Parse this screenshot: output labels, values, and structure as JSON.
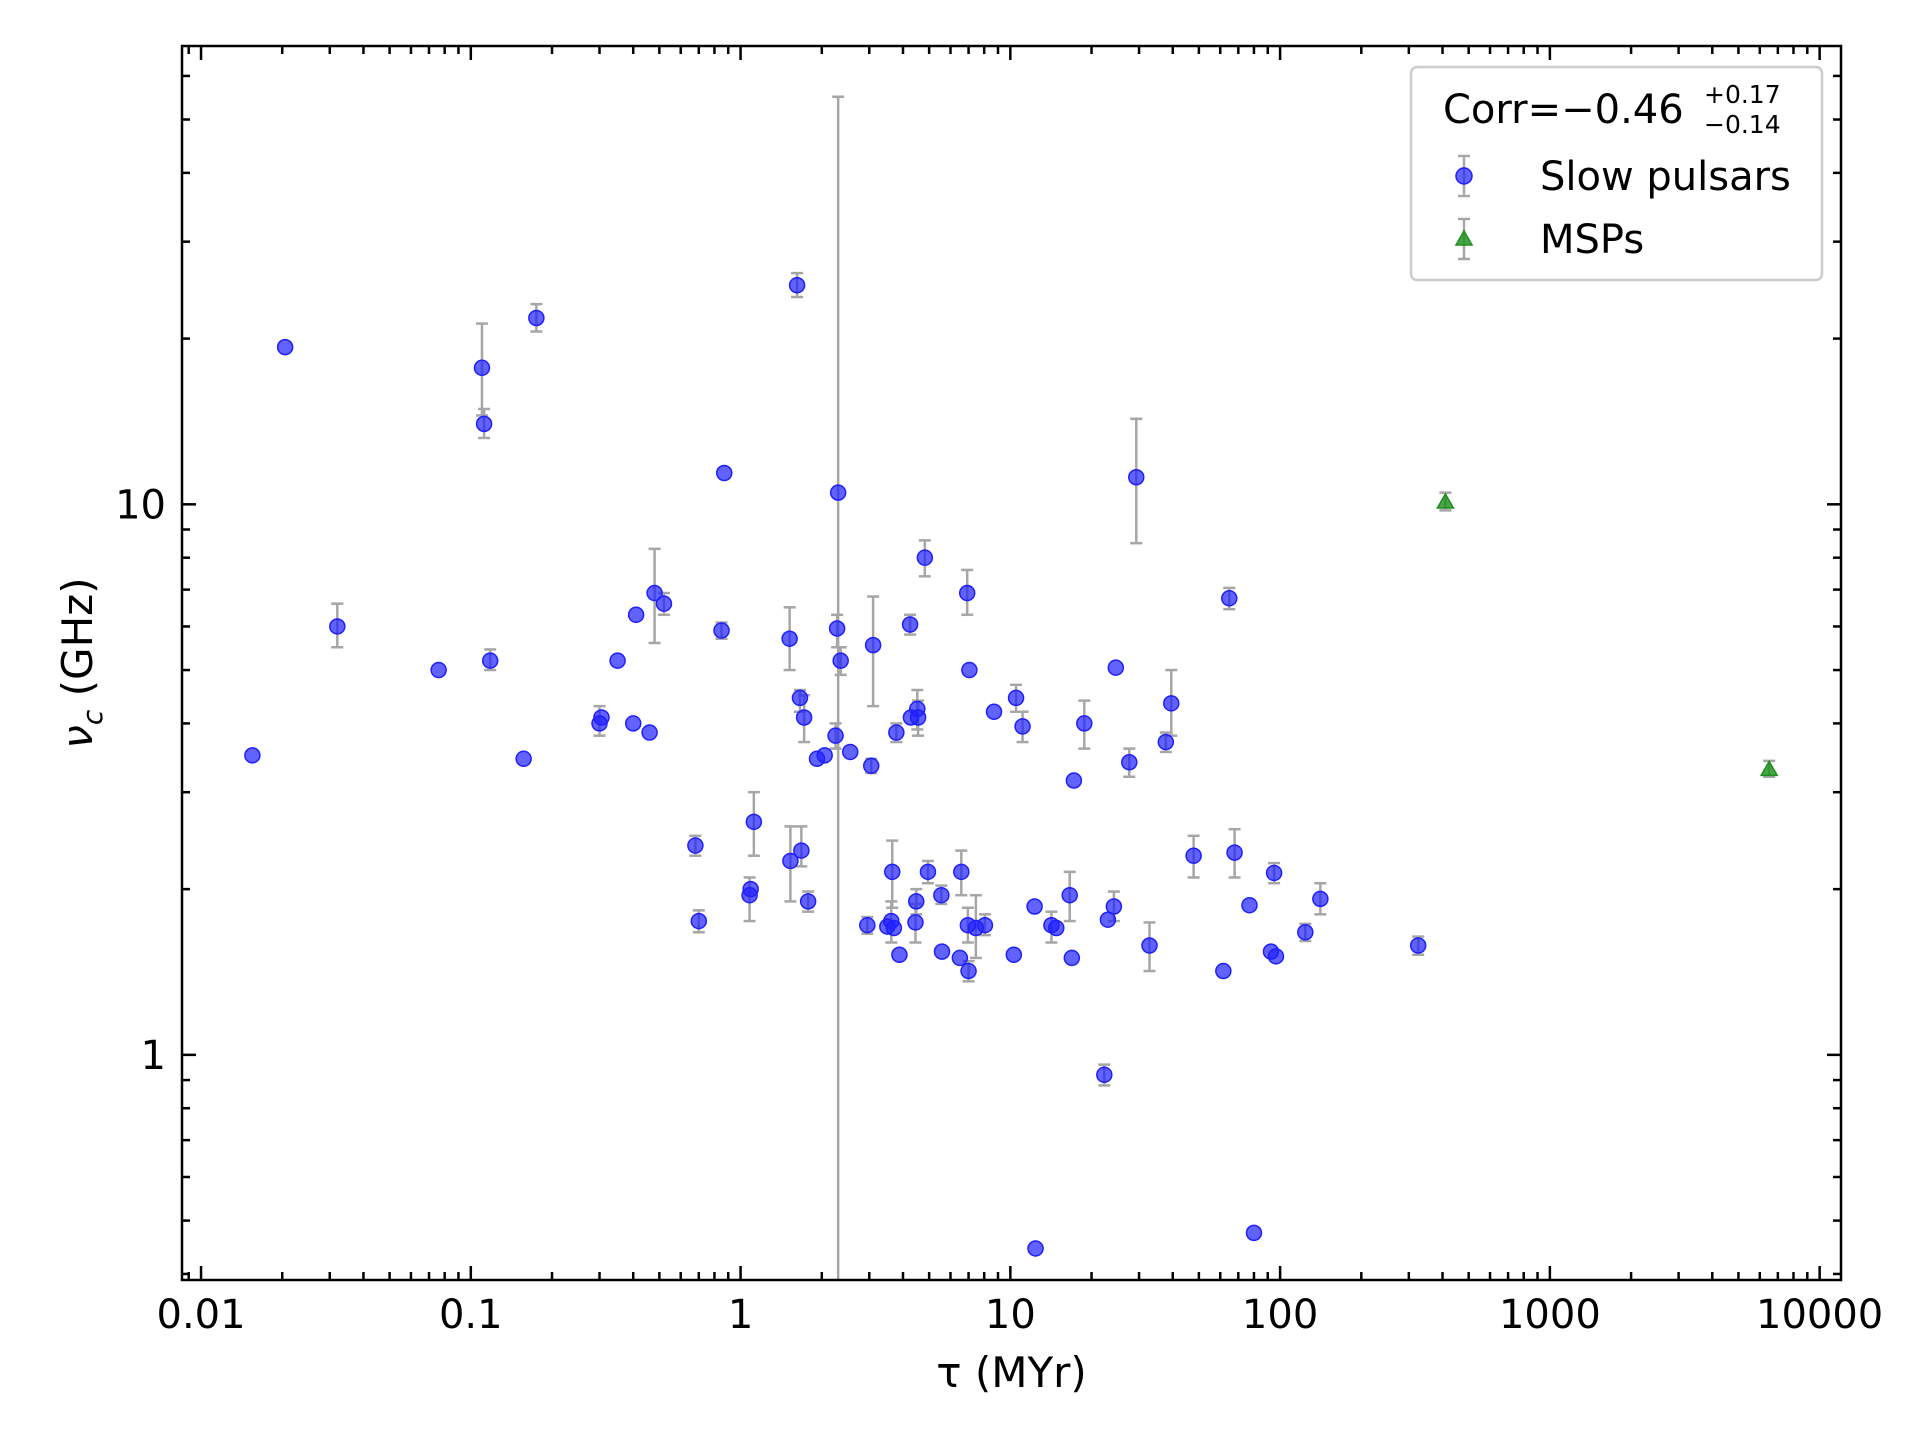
{
  "chart_data": {
    "type": "scatter",
    "title": "",
    "xlabel": "τ (MYr)",
    "ylabel": "ν_c (GHz)",
    "xscale": "log",
    "yscale": "log",
    "xlim": [
      0.0085,
      12000
    ],
    "ylim": [
      0.39,
      68
    ],
    "x_ticks": [
      0.01,
      0.1,
      1,
      10,
      100,
      1000,
      10000
    ],
    "x_tick_labels": [
      "0.01",
      "0.1",
      "1",
      "10",
      "100",
      "1000",
      "10000"
    ],
    "y_ticks": [
      1,
      10
    ],
    "y_tick_labels": [
      "1",
      "10"
    ],
    "grid": false,
    "legend_position": "top-right",
    "annotation": {
      "prefix": "Corr=",
      "value": "−0.46",
      "upper": "+0.17",
      "lower": "−0.14"
    },
    "series": [
      {
        "name": "Slow pulsars",
        "marker": "circle",
        "color": "#1f1fff",
        "points": [
          {
            "x": 0.0155,
            "y": 3.5
          },
          {
            "x": 0.0205,
            "y": 19.3
          },
          {
            "x": 0.032,
            "y": 6.0,
            "ylo": 5.5,
            "yhi": 6.6
          },
          {
            "x": 0.076,
            "y": 5.0
          },
          {
            "x": 0.11,
            "y": 17.7,
            "ylo": 14.5,
            "yhi": 21.3
          },
          {
            "x": 0.112,
            "y": 14.0,
            "ylo": 13.2,
            "yhi": 14.9
          },
          {
            "x": 0.118,
            "y": 5.2,
            "ylo": 5.0,
            "yhi": 5.45
          },
          {
            "x": 0.157,
            "y": 3.45
          },
          {
            "x": 0.175,
            "y": 21.8,
            "ylo": 20.6,
            "yhi": 23.1
          },
          {
            "x": 0.3,
            "y": 4.0,
            "ylo": 3.8,
            "yhi": 4.3
          },
          {
            "x": 0.305,
            "y": 4.1
          },
          {
            "x": 0.35,
            "y": 5.2
          },
          {
            "x": 0.4,
            "y": 4.0
          },
          {
            "x": 0.41,
            "y": 6.3
          },
          {
            "x": 0.46,
            "y": 3.85
          },
          {
            "x": 0.48,
            "y": 6.9,
            "ylo": 5.6,
            "yhi": 8.3
          },
          {
            "x": 0.52,
            "y": 6.6,
            "ylo": 6.3,
            "yhi": 6.9
          },
          {
            "x": 0.68,
            "y": 2.4,
            "ylo": 2.3,
            "yhi": 2.5
          },
          {
            "x": 0.7,
            "y": 1.75,
            "ylo": 1.67,
            "yhi": 1.83
          },
          {
            "x": 0.85,
            "y": 5.9,
            "ylo": 5.7,
            "yhi": 6.1
          },
          {
            "x": 0.87,
            "y": 11.4
          },
          {
            "x": 1.08,
            "y": 1.95,
            "ylo": 1.75,
            "yhi": 2.1
          },
          {
            "x": 1.09,
            "y": 2.0
          },
          {
            "x": 1.12,
            "y": 2.65,
            "ylo": 2.3,
            "yhi": 3.0
          },
          {
            "x": 1.52,
            "y": 5.7,
            "ylo": 5.0,
            "yhi": 6.5
          },
          {
            "x": 1.53,
            "y": 2.25,
            "ylo": 1.9,
            "yhi": 2.6
          },
          {
            "x": 1.62,
            "y": 25.0,
            "ylo": 23.8,
            "yhi": 26.3
          },
          {
            "x": 1.66,
            "y": 4.45,
            "ylo": 4.2,
            "yhi": 4.6
          },
          {
            "x": 1.68,
            "y": 2.35,
            "ylo": 2.2,
            "yhi": 2.6
          },
          {
            "x": 1.72,
            "y": 4.1,
            "ylo": 3.7,
            "yhi": 4.5
          },
          {
            "x": 1.78,
            "y": 1.9,
            "ylo": 1.82,
            "yhi": 1.98
          },
          {
            "x": 1.92,
            "y": 3.45
          },
          {
            "x": 2.05,
            "y": 3.5
          },
          {
            "x": 2.25,
            "y": 3.8,
            "ylo": 3.6,
            "yhi": 4.0
          },
          {
            "x": 2.28,
            "y": 5.95,
            "ylo": 5.5,
            "yhi": 6.3
          },
          {
            "x": 2.3,
            "y": 10.5,
            "ylo": 0.39,
            "yhi": 55.0
          },
          {
            "x": 2.35,
            "y": 5.2,
            "ylo": 4.9,
            "yhi": 5.5
          },
          {
            "x": 2.55,
            "y": 3.55
          },
          {
            "x": 2.95,
            "y": 1.72,
            "ylo": 1.66,
            "yhi": 1.78
          },
          {
            "x": 3.05,
            "y": 3.35,
            "ylo": 3.25,
            "yhi": 3.45
          },
          {
            "x": 3.1,
            "y": 5.55,
            "ylo": 4.3,
            "yhi": 6.8
          },
          {
            "x": 3.5,
            "y": 1.71
          },
          {
            "x": 3.62,
            "y": 1.75,
            "ylo": 1.6,
            "yhi": 1.9
          },
          {
            "x": 3.65,
            "y": 2.15,
            "ylo": 1.85,
            "yhi": 2.45
          },
          {
            "x": 3.7,
            "y": 1.7
          },
          {
            "x": 3.78,
            "y": 3.85,
            "ylo": 3.7,
            "yhi": 4.0
          },
          {
            "x": 3.88,
            "y": 1.52
          },
          {
            "x": 4.25,
            "y": 6.05,
            "ylo": 5.8,
            "yhi": 6.3
          },
          {
            "x": 4.28,
            "y": 4.1
          },
          {
            "x": 4.45,
            "y": 1.74,
            "ylo": 1.6,
            "yhi": 1.88
          },
          {
            "x": 4.48,
            "y": 1.9,
            "ylo": 1.8,
            "yhi": 2.0
          },
          {
            "x": 4.52,
            "y": 4.25,
            "ylo": 3.9,
            "yhi": 4.6
          },
          {
            "x": 4.55,
            "y": 4.1,
            "ylo": 3.8,
            "yhi": 4.4
          },
          {
            "x": 4.82,
            "y": 8.0,
            "ylo": 7.4,
            "yhi": 8.6
          },
          {
            "x": 4.95,
            "y": 2.15,
            "ylo": 2.05,
            "yhi": 2.25
          },
          {
            "x": 5.55,
            "y": 1.95,
            "ylo": 1.88,
            "yhi": 2.03
          },
          {
            "x": 5.58,
            "y": 1.54
          },
          {
            "x": 6.5,
            "y": 1.5
          },
          {
            "x": 6.58,
            "y": 2.15,
            "ylo": 1.95,
            "yhi": 2.35
          },
          {
            "x": 6.92,
            "y": 6.9,
            "ylo": 6.3,
            "yhi": 7.6
          },
          {
            "x": 6.96,
            "y": 1.72,
            "ylo": 1.6,
            "yhi": 1.85
          },
          {
            "x": 7.0,
            "y": 1.42,
            "ylo": 1.36,
            "yhi": 1.48
          },
          {
            "x": 7.05,
            "y": 5.0
          },
          {
            "x": 7.45,
            "y": 1.7,
            "ylo": 1.5,
            "yhi": 1.95
          },
          {
            "x": 8.05,
            "y": 1.72,
            "ylo": 1.65,
            "yhi": 1.8
          },
          {
            "x": 8.7,
            "y": 4.2
          },
          {
            "x": 10.3,
            "y": 1.52
          },
          {
            "x": 10.5,
            "y": 4.45,
            "ylo": 4.2,
            "yhi": 4.7
          },
          {
            "x": 11.1,
            "y": 3.95,
            "ylo": 3.7,
            "yhi": 4.2
          },
          {
            "x": 12.3,
            "y": 1.86
          },
          {
            "x": 12.4,
            "y": 0.445
          },
          {
            "x": 14.2,
            "y": 1.72,
            "ylo": 1.6,
            "yhi": 1.82
          },
          {
            "x": 14.8,
            "y": 1.7
          },
          {
            "x": 16.6,
            "y": 1.95,
            "ylo": 1.75,
            "yhi": 2.15
          },
          {
            "x": 16.9,
            "y": 1.5
          },
          {
            "x": 17.2,
            "y": 3.15
          },
          {
            "x": 18.8,
            "y": 4.0,
            "ylo": 3.6,
            "yhi": 4.4
          },
          {
            "x": 22.3,
            "y": 0.92,
            "ylo": 0.88,
            "yhi": 0.96
          },
          {
            "x": 23.0,
            "y": 1.76
          },
          {
            "x": 24.2,
            "y": 1.86,
            "ylo": 1.75,
            "yhi": 1.98
          },
          {
            "x": 24.6,
            "y": 5.05
          },
          {
            "x": 27.6,
            "y": 3.4,
            "ylo": 3.2,
            "yhi": 3.6
          },
          {
            "x": 29.3,
            "y": 11.2,
            "ylo": 8.5,
            "yhi": 14.3
          },
          {
            "x": 32.8,
            "y": 1.58,
            "ylo": 1.42,
            "yhi": 1.74
          },
          {
            "x": 37.7,
            "y": 3.7,
            "ylo": 3.55,
            "yhi": 3.85
          },
          {
            "x": 39.5,
            "y": 4.35,
            "ylo": 3.8,
            "yhi": 5.0
          },
          {
            "x": 47.8,
            "y": 2.3,
            "ylo": 2.1,
            "yhi": 2.5
          },
          {
            "x": 61.6,
            "y": 1.42
          },
          {
            "x": 64.8,
            "y": 6.75,
            "ylo": 6.45,
            "yhi": 7.05
          },
          {
            "x": 67.8,
            "y": 2.33,
            "ylo": 2.1,
            "yhi": 2.57
          },
          {
            "x": 77.0,
            "y": 1.87
          },
          {
            "x": 80.0,
            "y": 0.475
          },
          {
            "x": 92.5,
            "y": 1.54
          },
          {
            "x": 95.0,
            "y": 2.14,
            "ylo": 2.05,
            "yhi": 2.23
          },
          {
            "x": 96.5,
            "y": 1.51
          },
          {
            "x": 124.0,
            "y": 1.67,
            "ylo": 1.61,
            "yhi": 1.73
          },
          {
            "x": 141.0,
            "y": 1.92,
            "ylo": 1.8,
            "yhi": 2.05
          },
          {
            "x": 325.0,
            "y": 1.58,
            "ylo": 1.52,
            "yhi": 1.64
          }
        ]
      },
      {
        "name": "MSPs",
        "marker": "triangle",
        "color": "#1a8f1a",
        "points": [
          {
            "x": 410,
            "y": 10.1,
            "ylo": 9.75,
            "yhi": 10.5
          },
          {
            "x": 6500,
            "y": 3.3,
            "ylo": 3.2,
            "yhi": 3.42
          }
        ]
      }
    ]
  }
}
